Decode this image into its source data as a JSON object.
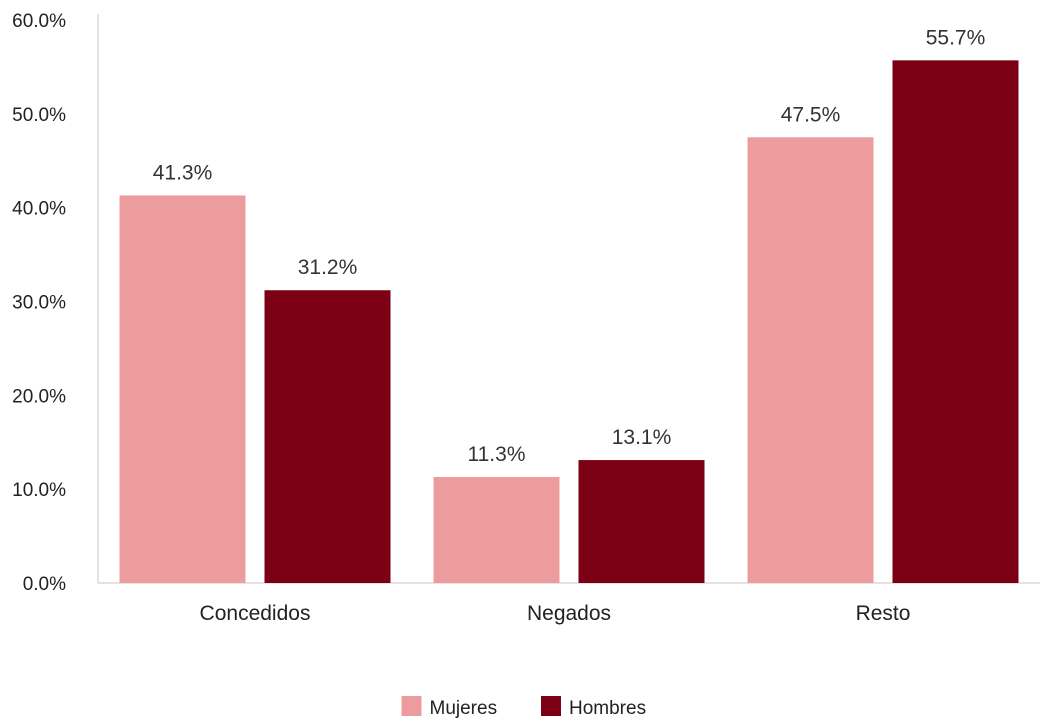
{
  "chart_data": {
    "type": "bar",
    "title": "",
    "xlabel": "",
    "ylabel": "",
    "categories": [
      "Concedidos",
      "Negados",
      "Resto"
    ],
    "series": [
      {
        "name": "Mujeres",
        "color": "#ec9c9c",
        "values": [
          41.3,
          11.3,
          47.5
        ],
        "labels": [
          "41.3%",
          "11.3%",
          "47.5%"
        ]
      },
      {
        "name": "Hombres",
        "color": "#7b0014",
        "values": [
          31.2,
          13.1,
          55.7
        ],
        "labels": [
          "31.2%",
          "13.1%",
          "55.7%"
        ]
      }
    ],
    "ylim": [
      0,
      60
    ],
    "yticks": [
      0,
      10,
      20,
      30,
      40,
      50,
      60
    ],
    "ytick_labels": [
      "0.0%",
      "10.0%",
      "20.0%",
      "30.0%",
      "40.0%",
      "50.0%",
      "60.0%"
    ],
    "grid": false,
    "legend_position": "bottom-center"
  }
}
